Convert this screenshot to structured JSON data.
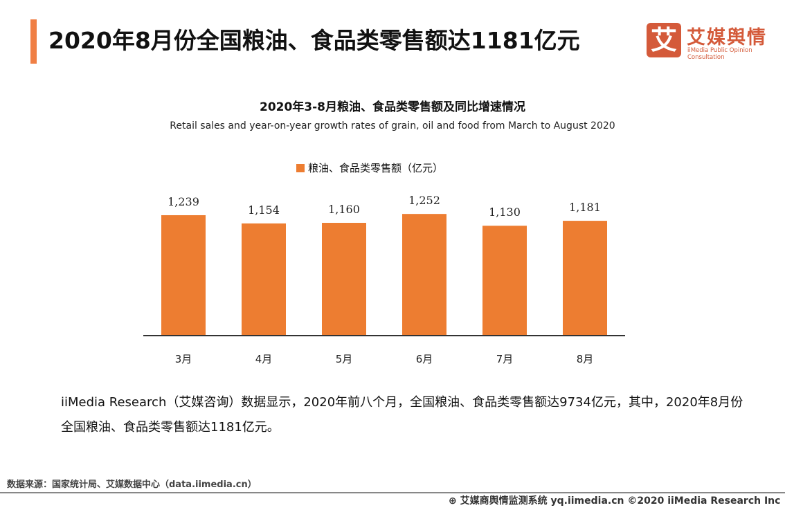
{
  "header": {
    "title": "2020年8月份全国粮油、食品类零售额达1181亿元",
    "accent_color": "#f07f45"
  },
  "logo": {
    "mark": "艾",
    "name": "艾媒舆情",
    "tagline": "iiMedia Public Opinion Consultation",
    "color": "#d45a3a"
  },
  "chart_data": {
    "type": "bar",
    "title": "2020年3-8月粮油、食品类零售额及同比增速情况",
    "subtitle": "Retail sales and year-on-year growth rates of grain, oil and food from March to August 2020",
    "categories": [
      "3月",
      "4月",
      "5月",
      "6月",
      "7月",
      "8月"
    ],
    "series": [
      {
        "name": "粮油、食品类零售额（亿元）",
        "values": [
          1239,
          1154,
          1160,
          1252,
          1130,
          1181
        ],
        "color": "#ed7d31"
      }
    ],
    "data_labels": [
      "1,239",
      "1,154",
      "1,160",
      "1,252",
      "1,130",
      "1,181"
    ],
    "ylim": [
      0,
      1400
    ],
    "grid": false,
    "legend": "top"
  },
  "body": {
    "text": "iiMedia Research（艾媒咨询）数据显示，2020年前八个月，全国粮油、食品类零售额达9734亿元，其中，2020年8月份全国粮油、食品类零售额达1181亿元。"
  },
  "source": "数据来源：国家统计局、艾媒数据中心（data.iimedia.cn）",
  "footer": "艾媒商舆情监测系统 yq.iimedia.cn  ©2020  iiMedia Research  Inc"
}
